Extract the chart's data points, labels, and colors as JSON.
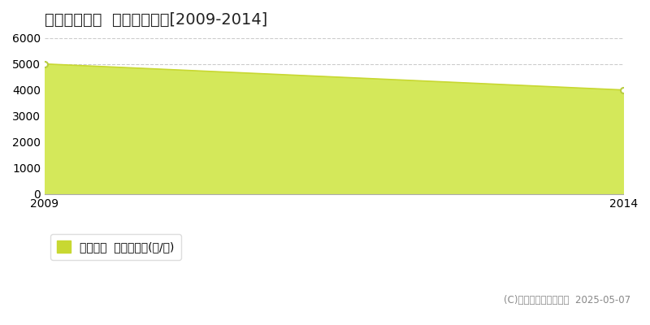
{
  "title": "福井市佐野町  農地価格推移[2009-2014]",
  "years": [
    2009,
    2014
  ],
  "values": [
    5000,
    4000
  ],
  "ylim": [
    0,
    6000
  ],
  "yticks": [
    0,
    1000,
    2000,
    3000,
    4000,
    5000,
    6000
  ],
  "xlim": [
    2009,
    2014
  ],
  "line_color": "#c8d832",
  "fill_color": "#d4e85a",
  "fill_alpha": 1.0,
  "marker_color": "#ffffff",
  "marker_edge_color": "#b8cc40",
  "grid_color": "#cccccc",
  "bg_color": "#ffffff",
  "plot_bg_color": "#ffffff",
  "legend_label": "農地価格  平均坪単価(円/坪)",
  "copyright": "(C)土地価格ドットコム  2025-05-07",
  "title_fontsize": 14,
  "label_fontsize": 10,
  "tick_fontsize": 10
}
